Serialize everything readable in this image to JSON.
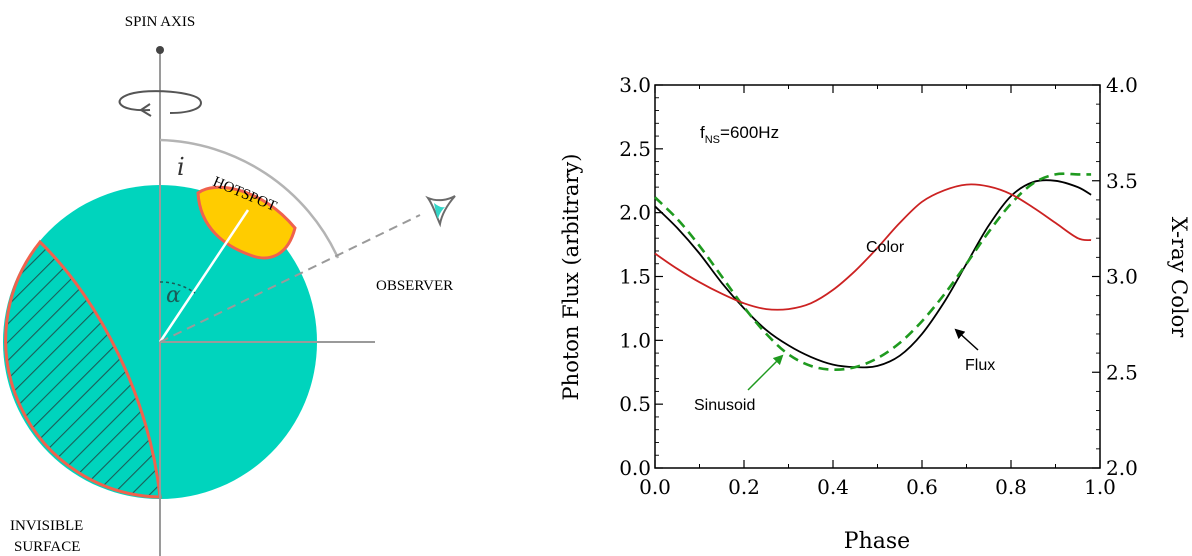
{
  "diagram": {
    "spin_axis_label": "SPIN AXIS",
    "hotspot_label": "HOTSPOT",
    "observer_label": "OBSERVER",
    "invisible_label_line1": "INVISIBLE",
    "invisible_label_line2": "SURFACE",
    "inclination_symbol": "i",
    "alpha_symbol": "α",
    "colors": {
      "star": "#00d4bd",
      "hotspot": "#ffcc00",
      "outline": "#f0624d",
      "hatch": "#1a5c57",
      "axis": "#9a9a9a",
      "observer_eye": "#33d6c8"
    }
  },
  "chart_data": {
    "type": "line",
    "title": "",
    "annotation_main": "f",
    "annotation_sub": "NS",
    "annotation_rest": "=600Hz",
    "xlabel": "Phase",
    "ylabel_left": "Photon Flux (arbitrary)",
    "ylabel_right": "X-ray Color",
    "xlim": [
      0.0,
      1.0
    ],
    "ylim_left": [
      0.0,
      3.0
    ],
    "ylim_right": [
      2.0,
      4.0
    ],
    "x_ticks": [
      "0.0",
      "0.2",
      "0.4",
      "0.6",
      "0.8",
      "1.0"
    ],
    "y_ticks_left": [
      "0.0",
      "0.5",
      "1.0",
      "1.5",
      "2.0",
      "2.5",
      "3.0"
    ],
    "y_ticks_right": [
      "2.0",
      "2.5",
      "3.0",
      "3.5",
      "4.0"
    ],
    "series": [
      {
        "name": "Flux",
        "axis": "left",
        "color": "#000000",
        "style": "solid",
        "x": [
          0.0,
          0.05,
          0.1,
          0.15,
          0.2,
          0.25,
          0.3,
          0.35,
          0.4,
          0.45,
          0.5,
          0.55,
          0.6,
          0.65,
          0.7,
          0.75,
          0.8,
          0.85,
          0.9,
          0.95,
          0.98
        ],
        "y": [
          2.05,
          1.88,
          1.68,
          1.45,
          1.25,
          1.08,
          0.96,
          0.87,
          0.81,
          0.79,
          0.8,
          0.88,
          1.05,
          1.3,
          1.6,
          1.9,
          2.13,
          2.24,
          2.25,
          2.2,
          2.14
        ]
      },
      {
        "name": "Sinusoid",
        "axis": "left",
        "color": "#1f9a1f",
        "style": "dashed",
        "x": [
          0.0,
          0.05,
          0.1,
          0.15,
          0.2,
          0.25,
          0.3,
          0.35,
          0.4,
          0.45,
          0.5,
          0.55,
          0.6,
          0.65,
          0.7,
          0.75,
          0.8,
          0.85,
          0.9,
          0.95,
          0.98
        ],
        "y": [
          2.12,
          1.95,
          1.74,
          1.5,
          1.26,
          1.05,
          0.89,
          0.8,
          0.77,
          0.79,
          0.86,
          0.98,
          1.15,
          1.36,
          1.6,
          1.85,
          2.07,
          2.23,
          2.3,
          2.3,
          2.3
        ]
      },
      {
        "name": "Color",
        "axis": "right",
        "color": "#cc2222",
        "style": "solid",
        "x": [
          0.0,
          0.05,
          0.1,
          0.15,
          0.2,
          0.25,
          0.3,
          0.35,
          0.4,
          0.45,
          0.5,
          0.55,
          0.6,
          0.65,
          0.7,
          0.75,
          0.8,
          0.85,
          0.9,
          0.95,
          0.98
        ],
        "y": [
          3.12,
          3.04,
          2.97,
          2.91,
          2.86,
          2.83,
          2.83,
          2.86,
          2.93,
          3.03,
          3.15,
          3.28,
          3.39,
          3.45,
          3.48,
          3.47,
          3.43,
          3.36,
          3.28,
          3.2,
          3.19
        ]
      }
    ],
    "labels": {
      "color_label": "Color",
      "flux_label": "Flux",
      "sinusoid_label": "Sinusoid"
    }
  }
}
